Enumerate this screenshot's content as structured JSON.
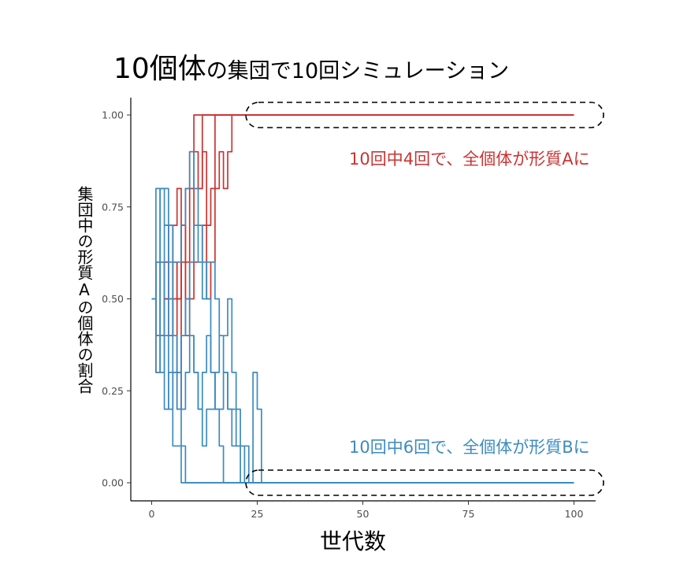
{
  "title": {
    "part1": "10個体",
    "part2": "の集団で10回シミュレーション"
  },
  "annotations": {
    "top": "10回中4回で、全個体が形質Aに",
    "bottom": "10回中6回で、全個体が形質Bに"
  },
  "colors": {
    "red": "#cc3333",
    "blue": "#3d8bbf",
    "axis": "#000000",
    "tick_label": "#4d4d4d"
  },
  "chart_data": {
    "type": "line",
    "title": "10個体の集団で10回シミュレーション",
    "xlabel": "世代数",
    "ylabel": "集団中の形質Aの個体の割合",
    "xlim": [
      -5,
      105
    ],
    "ylim": [
      -0.05,
      1.05
    ],
    "x_ticks": [
      "0",
      "25",
      "50",
      "75",
      "100"
    ],
    "y_ticks": [
      "0.00",
      "0.25",
      "0.50",
      "0.75",
      "1.00"
    ],
    "grid": false,
    "series": [
      {
        "color": "red",
        "x": [
          0,
          1,
          2,
          3,
          4,
          5,
          6,
          7,
          8,
          9,
          10,
          11,
          12,
          13,
          14,
          15,
          16,
          17,
          18,
          19,
          20,
          21,
          100
        ],
        "y": [
          0.5,
          0.4,
          0.6,
          0.5,
          0.7,
          0.6,
          0.5,
          0.7,
          0.8,
          0.9,
          1.0,
          1.0,
          1.0,
          1.0,
          1.0,
          1.0,
          1.0,
          1.0,
          1.0,
          1.0,
          1.0,
          1.0,
          1.0
        ]
      },
      {
        "color": "red",
        "x": [
          0,
          1,
          2,
          3,
          4,
          5,
          6,
          7,
          8,
          9,
          10,
          11,
          12,
          13,
          14,
          15,
          100
        ],
        "y": [
          0.5,
          0.6,
          0.4,
          0.5,
          0.5,
          0.7,
          0.8,
          0.7,
          0.6,
          0.8,
          0.9,
          0.8,
          1.0,
          1.0,
          1.0,
          1.0,
          1.0
        ]
      },
      {
        "color": "red",
        "x": [
          0,
          1,
          2,
          3,
          4,
          5,
          6,
          7,
          8,
          9,
          10,
          11,
          12,
          13,
          14,
          15,
          16,
          17,
          100
        ],
        "y": [
          0.5,
          0.3,
          0.4,
          0.5,
          0.5,
          0.6,
          0.5,
          0.7,
          0.5,
          0.6,
          0.8,
          0.8,
          0.9,
          0.7,
          0.8,
          1.0,
          1.0,
          1.0,
          1.0
        ]
      },
      {
        "color": "red",
        "x": [
          0,
          1,
          2,
          3,
          4,
          5,
          6,
          7,
          8,
          9,
          10,
          11,
          12,
          13,
          14,
          15,
          16,
          17,
          18,
          19,
          20,
          100
        ],
        "y": [
          0.5,
          0.4,
          0.4,
          0.6,
          0.4,
          0.5,
          0.2,
          0.6,
          0.4,
          0.5,
          0.6,
          0.6,
          0.7,
          0.5,
          0.6,
          0.8,
          0.9,
          0.8,
          0.9,
          1.0,
          1.0,
          1.0
        ]
      },
      {
        "color": "blue",
        "x": [
          0,
          1,
          2,
          3,
          4,
          5,
          6,
          7,
          8,
          9,
          10,
          11,
          12,
          13,
          14,
          15,
          16,
          17,
          18,
          19,
          20,
          21,
          22,
          23,
          24,
          25,
          26,
          100
        ],
        "y": [
          0.5,
          0.8,
          0.6,
          0.4,
          0.5,
          0.3,
          0.3,
          0.2,
          0.3,
          0.4,
          0.3,
          0.2,
          0.1,
          0.2,
          0.2,
          0.3,
          0.4,
          0.3,
          0.2,
          0.2,
          0.1,
          0.1,
          0.0,
          0.0,
          0.3,
          0.2,
          0.0,
          0.0
        ]
      },
      {
        "color": "blue",
        "x": [
          0,
          1,
          2,
          3,
          4,
          5,
          6,
          7,
          8,
          9,
          10,
          11,
          12,
          13,
          14,
          15,
          16,
          17,
          18,
          19,
          20,
          21,
          22,
          23,
          24,
          25,
          100
        ],
        "y": [
          0.5,
          0.6,
          0.8,
          0.8,
          0.7,
          0.6,
          0.6,
          0.7,
          0.8,
          0.9,
          0.8,
          0.7,
          0.5,
          0.6,
          0.6,
          0.5,
          0.4,
          0.4,
          0.5,
          0.3,
          0.2,
          0.1,
          0.1,
          0.0,
          0.0,
          0.0,
          0.0
        ]
      },
      {
        "color": "blue",
        "x": [
          0,
          1,
          2,
          3,
          4,
          5,
          6,
          7,
          8,
          9,
          10,
          11,
          12,
          13,
          14,
          15,
          16,
          17,
          18,
          19,
          20,
          21,
          100
        ],
        "y": [
          0.5,
          0.4,
          0.6,
          0.7,
          0.5,
          0.4,
          0.3,
          0.4,
          0.5,
          0.4,
          0.3,
          0.2,
          0.3,
          0.4,
          0.3,
          0.2,
          0.2,
          0.3,
          0.2,
          0.1,
          0.1,
          0.0,
          0.0
        ]
      },
      {
        "color": "blue",
        "x": [
          0,
          1,
          2,
          3,
          4,
          5,
          6,
          7,
          8,
          9,
          100
        ],
        "y": [
          0.5,
          0.4,
          0.3,
          0.4,
          0.2,
          0.3,
          0.2,
          0.1,
          0.0,
          0.0,
          0.0
        ]
      },
      {
        "color": "blue",
        "x": [
          0,
          1,
          2,
          3,
          4,
          5,
          6,
          7,
          8,
          9,
          10,
          11,
          12,
          13,
          14,
          15,
          16,
          17,
          18,
          100
        ],
        "y": [
          0.5,
          0.6,
          0.8,
          0.7,
          0.6,
          0.4,
          0.3,
          0.4,
          0.5,
          0.6,
          0.7,
          0.6,
          0.6,
          0.5,
          0.3,
          0.2,
          0.1,
          0.0,
          0.0,
          0.0
        ]
      },
      {
        "color": "blue",
        "x": [
          0,
          1,
          2,
          3,
          4,
          5,
          6,
          7,
          100
        ],
        "y": [
          0.5,
          0.3,
          0.4,
          0.2,
          0.3,
          0.1,
          0.1,
          0.0,
          0.0
        ]
      }
    ]
  }
}
